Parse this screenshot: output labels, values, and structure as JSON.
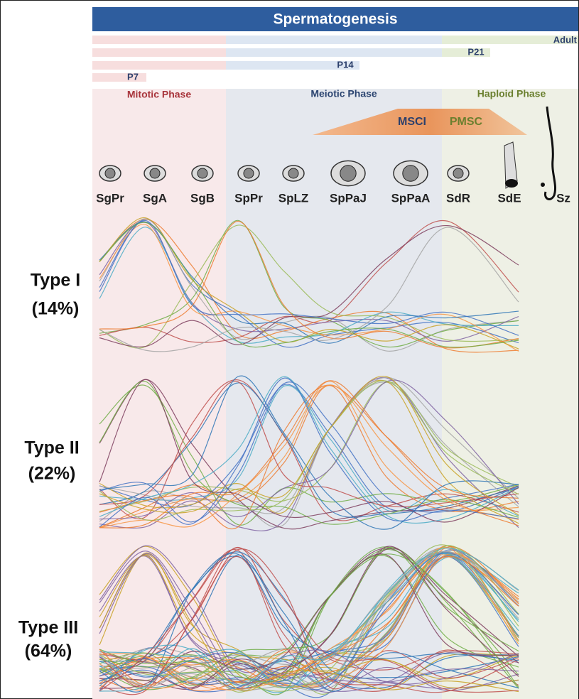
{
  "header": {
    "title": "Spermatogenesis"
  },
  "ages": [
    "Adult",
    "P21",
    "P14",
    "P7"
  ],
  "phases": [
    "Mitotic Phase",
    "Meiotic Phase",
    "Haploid Phase"
  ],
  "silencing": [
    "MSCI",
    "PMSC"
  ],
  "cells": [
    "SgPr",
    "SgA",
    "SgB",
    "SpPr",
    "SpLZ",
    "SpPaJ",
    "SpPaA",
    "SdR",
    "SdE",
    "Sz"
  ],
  "groups": [
    {
      "name": "Type I",
      "share": "(14%)"
    },
    {
      "name": "Type II",
      "share": "(22%)"
    },
    {
      "name": "Type III",
      "share": "(64%)"
    }
  ]
}
